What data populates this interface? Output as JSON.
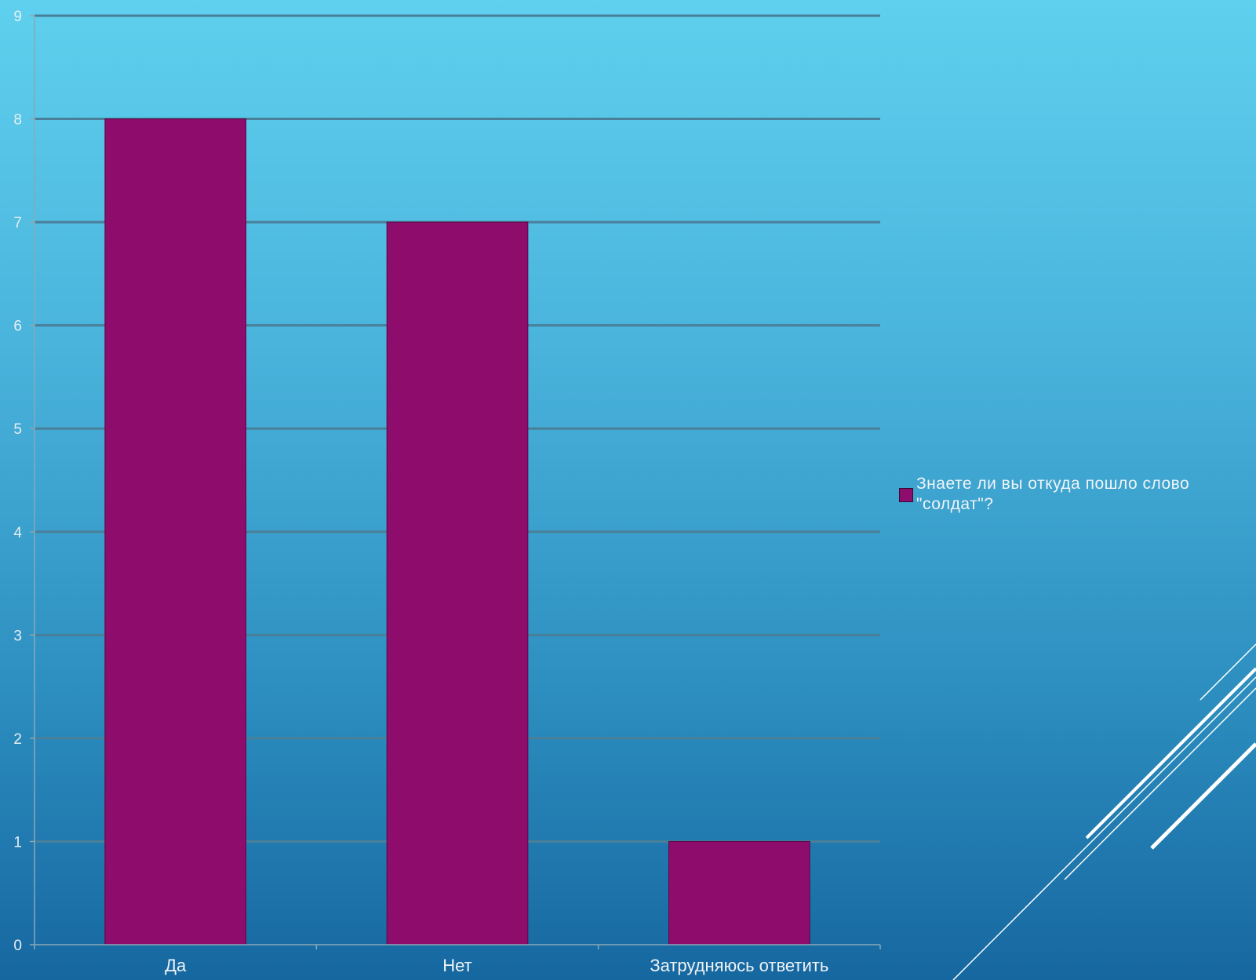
{
  "chart_data": {
    "type": "bar",
    "categories": [
      "Да",
      "Нет",
      "Затрудняюсь ответить"
    ],
    "series": [
      {
        "name": "Знаете ли вы откуда пошло слово \"солдат\"?",
        "values": [
          8,
          7,
          1
        ],
        "color": "#8e0c6c"
      }
    ],
    "ylim": [
      0,
      9
    ],
    "yticks": [
      0,
      1,
      2,
      3,
      4,
      5,
      6,
      7,
      8,
      9
    ],
    "grid": true,
    "legend_position": "right"
  }
}
